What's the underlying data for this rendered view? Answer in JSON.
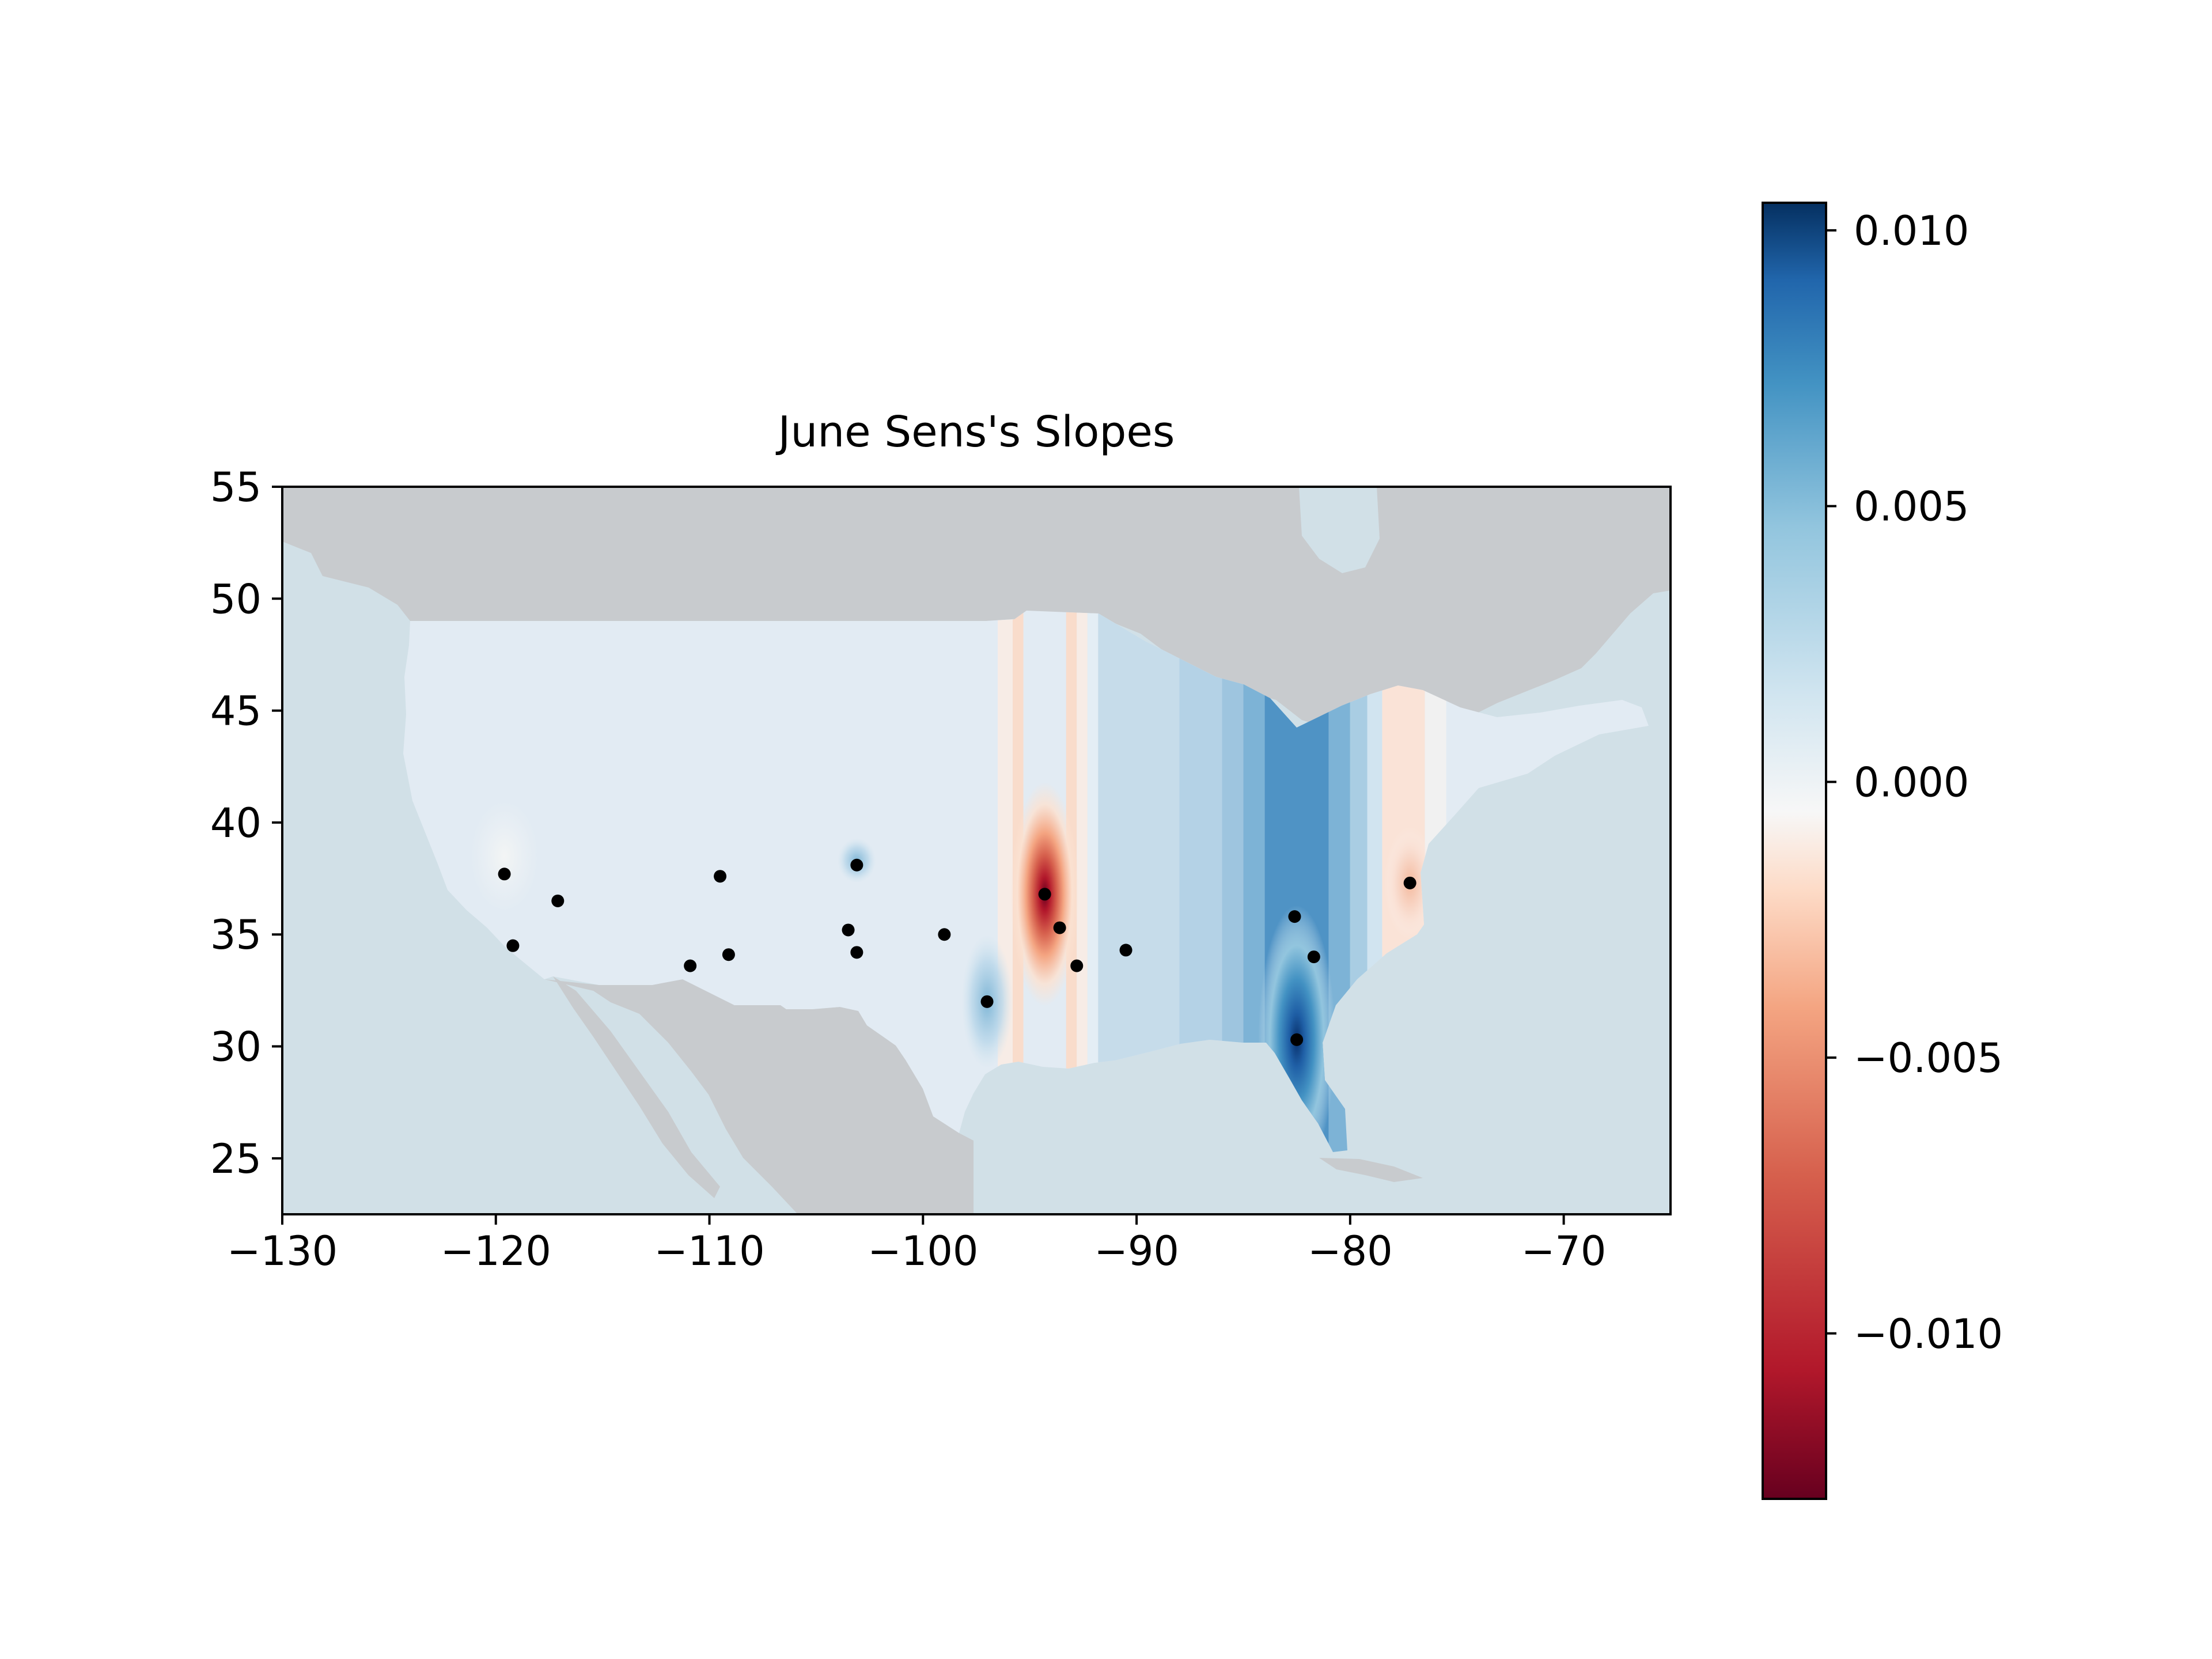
{
  "chart_data": {
    "type": "heatmap",
    "title": "June Sens's Slopes",
    "xlabel": "",
    "ylabel": "",
    "xlim": [
      -130,
      -65
    ],
    "ylim": [
      22.5,
      55
    ],
    "x_ticks": [
      -130,
      -120,
      -110,
      -100,
      -90,
      -80,
      -70
    ],
    "x_tick_labels": [
      "−130",
      "−120",
      "−110",
      "−100",
      "−90",
      "−80",
      "−70"
    ],
    "y_ticks": [
      25,
      30,
      35,
      40,
      45,
      50,
      55
    ],
    "y_tick_labels": [
      "25",
      "30",
      "35",
      "40",
      "45",
      "50",
      "55"
    ],
    "grid": false,
    "colormap": "RdBu",
    "colorbar": {
      "vmin": -0.013,
      "vmax": 0.0105,
      "ticks": [
        0.01,
        0.005,
        0.0,
        -0.005,
        -0.01
      ],
      "tick_labels": [
        "0.010",
        "0.005",
        "0.000",
        "−0.005",
        "−0.010"
      ]
    },
    "stations": [
      {
        "lon": -119.6,
        "lat": 37.7
      },
      {
        "lon": -117.1,
        "lat": 36.5
      },
      {
        "lon": -119.2,
        "lat": 34.5
      },
      {
        "lon": -109.5,
        "lat": 37.6
      },
      {
        "lon": -110.9,
        "lat": 33.6
      },
      {
        "lon": -109.1,
        "lat": 34.1
      },
      {
        "lon": -103.1,
        "lat": 38.1
      },
      {
        "lon": -103.5,
        "lat": 35.2
      },
      {
        "lon": -103.1,
        "lat": 34.2
      },
      {
        "lon": -99.0,
        "lat": 35.0
      },
      {
        "lon": -97.0,
        "lat": 32.0
      },
      {
        "lon": -94.3,
        "lat": 36.8
      },
      {
        "lon": -93.6,
        "lat": 35.3
      },
      {
        "lon": -92.8,
        "lat": 33.6
      },
      {
        "lon": -90.5,
        "lat": 34.3
      },
      {
        "lon": -82.6,
        "lat": 35.8
      },
      {
        "lon": -82.5,
        "lat": 30.3
      },
      {
        "lon": -81.7,
        "lat": 34.0
      },
      {
        "lon": -77.2,
        "lat": 37.3
      }
    ],
    "field_features": [
      {
        "lon": -94.3,
        "lat": 36.8,
        "value": -0.013,
        "lon_width": 1.6,
        "lat_height": 5.0
      },
      {
        "lon": -82.5,
        "lat": 30.3,
        "value": 0.0105,
        "lon_width": 1.8,
        "lat_height": 6.0
      },
      {
        "lon": -97.0,
        "lat": 32.0,
        "value": 0.003,
        "lon_width": 1.2,
        "lat_height": 3.0
      },
      {
        "lon": -77.2,
        "lat": 37.3,
        "value": -0.002,
        "lon_width": 1.2,
        "lat_height": 2.5
      },
      {
        "lon": -119.6,
        "lat": 38.5,
        "value": -0.0005,
        "lon_width": 1.6,
        "lat_height": 2.5
      },
      {
        "lon": -103.1,
        "lat": 38.3,
        "value": 0.0015,
        "lon_width": 0.9,
        "lat_height": 1.0
      }
    ],
    "colors": {
      "ocean": "#d1e0e7",
      "land": "#c8cbce",
      "field_base": "#e2ebf3",
      "axes": "#000000"
    }
  }
}
